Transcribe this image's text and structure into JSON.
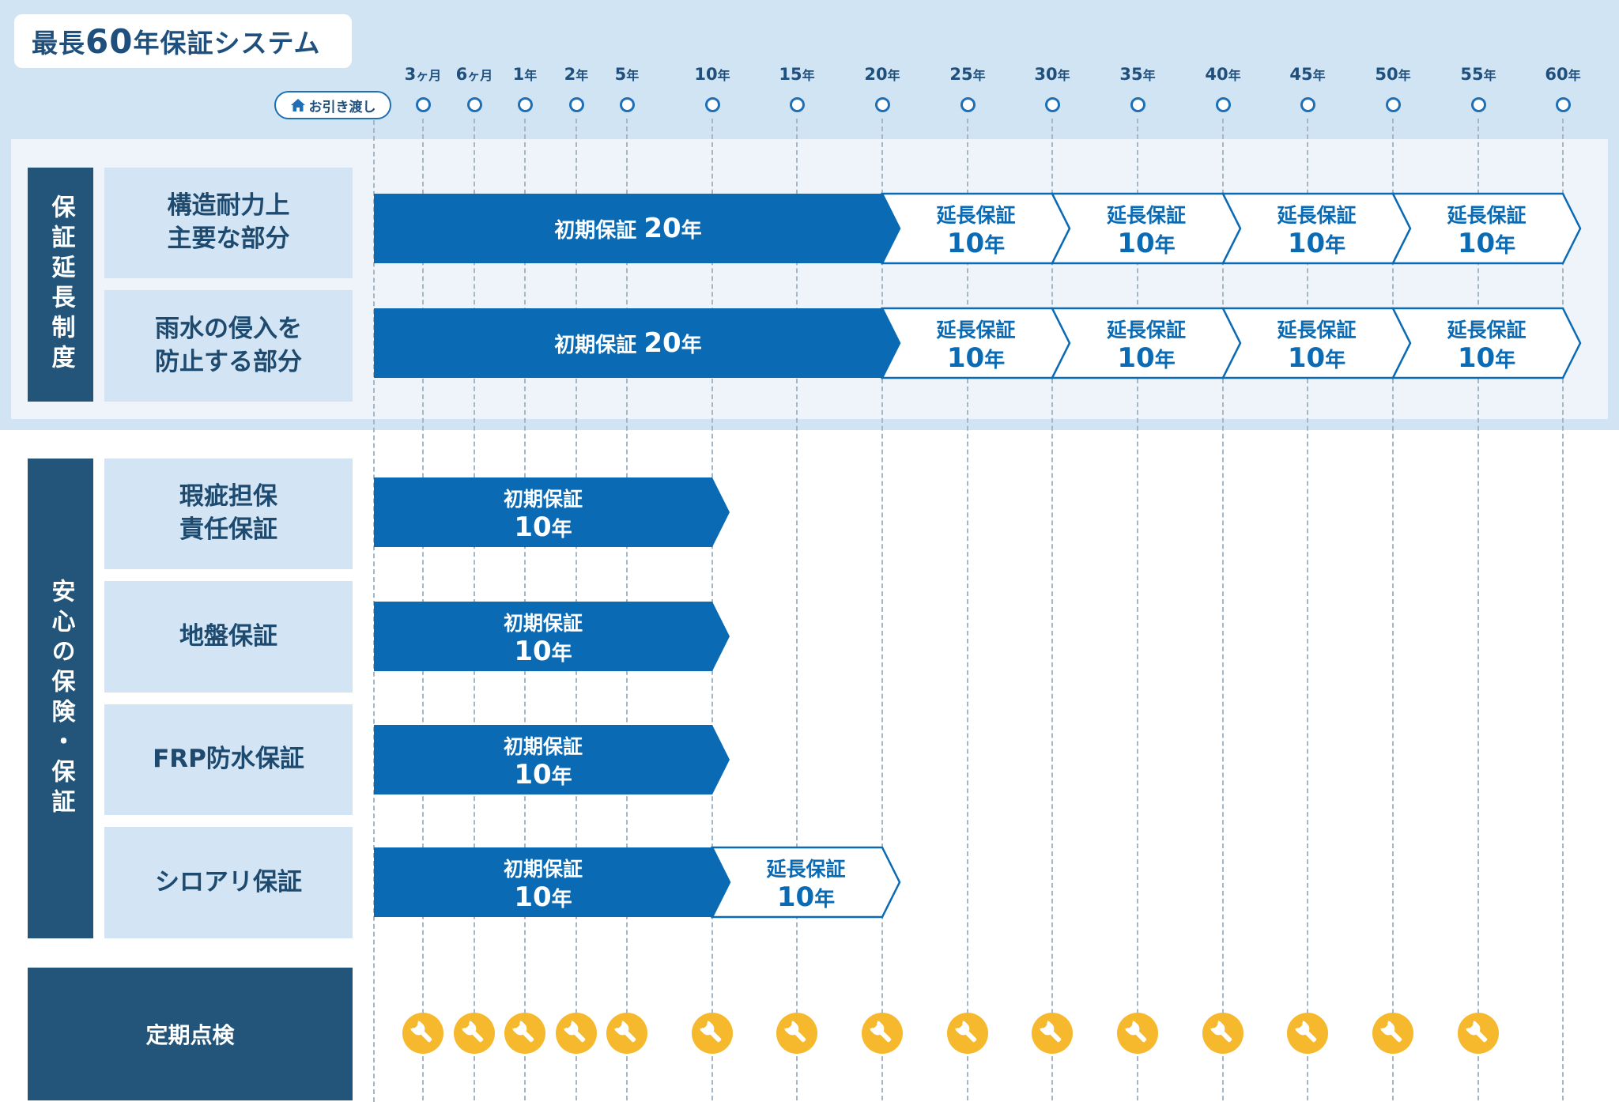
{
  "title": {
    "prefix": "最長",
    "number": "60",
    "suffix": "年保証システム"
  },
  "handover_label": "お引き渡し",
  "colors": {
    "primary": "#0a6ab4",
    "dark": "#23557a",
    "light": "#d3e5f4",
    "wrench": "#f6b82c"
  },
  "timeline": [
    {
      "n": "3",
      "u": "ヶ月"
    },
    {
      "n": "6",
      "u": "ヶ月"
    },
    {
      "n": "1",
      "u": "年"
    },
    {
      "n": "2",
      "u": "年"
    },
    {
      "n": "5",
      "u": "年"
    },
    {
      "n": "10",
      "u": "年"
    },
    {
      "n": "15",
      "u": "年"
    },
    {
      "n": "20",
      "u": "年"
    },
    {
      "n": "25",
      "u": "年"
    },
    {
      "n": "30",
      "u": "年"
    },
    {
      "n": "35",
      "u": "年"
    },
    {
      "n": "40",
      "u": "年"
    },
    {
      "n": "45",
      "u": "年"
    },
    {
      "n": "50",
      "u": "年"
    },
    {
      "n": "55",
      "u": "年"
    },
    {
      "n": "60",
      "u": "年"
    }
  ],
  "groups": {
    "extension": {
      "label": "保証延長制度",
      "rows": [
        {
          "name": "構造耐力上\n主要な部分",
          "initial": {
            "label": "初期保証",
            "years": "20",
            "unit": "年",
            "from": 0,
            "to": 20
          },
          "extensions": [
            {
              "label": "延長保証",
              "years": "10",
              "unit": "年",
              "from": 20,
              "to": 30
            },
            {
              "label": "延長保証",
              "years": "10",
              "unit": "年",
              "from": 30,
              "to": 40
            },
            {
              "label": "延長保証",
              "years": "10",
              "unit": "年",
              "from": 40,
              "to": 50
            },
            {
              "label": "延長保証",
              "years": "10",
              "unit": "年",
              "from": 50,
              "to": 60
            }
          ]
        },
        {
          "name": "雨水の侵入を\n防止する部分",
          "initial": {
            "label": "初期保証",
            "years": "20",
            "unit": "年",
            "from": 0,
            "to": 20
          },
          "extensions": [
            {
              "label": "延長保証",
              "years": "10",
              "unit": "年",
              "from": 20,
              "to": 30
            },
            {
              "label": "延長保証",
              "years": "10",
              "unit": "年",
              "from": 30,
              "to": 40
            },
            {
              "label": "延長保証",
              "years": "10",
              "unit": "年",
              "from": 40,
              "to": 50
            },
            {
              "label": "延長保証",
              "years": "10",
              "unit": "年",
              "from": 50,
              "to": 60
            }
          ]
        }
      ]
    },
    "insurance": {
      "label": "安心の保険・保証",
      "rows": [
        {
          "name": "瑕疵担保\n責任保証",
          "initial": {
            "label": "初期保証",
            "years": "10",
            "unit": "年",
            "from": 0,
            "to": 10
          },
          "extensions": []
        },
        {
          "name": "地盤保証",
          "initial": {
            "label": "初期保証",
            "years": "10",
            "unit": "年",
            "from": 0,
            "to": 10
          },
          "extensions": []
        },
        {
          "name": "FRP防水保証",
          "initial": {
            "label": "初期保証",
            "years": "10",
            "unit": "年",
            "from": 0,
            "to": 10
          },
          "extensions": []
        },
        {
          "name": "シロアリ保証",
          "initial": {
            "label": "初期保証",
            "years": "10",
            "unit": "年",
            "from": 0,
            "to": 10
          },
          "extensions": [
            {
              "label": "延長保証",
              "years": "10",
              "unit": "年",
              "from": 10,
              "to": 20
            }
          ]
        }
      ]
    }
  },
  "inspection": {
    "label": "定期点検",
    "points": [
      "3ヶ月",
      "6ヶ月",
      "1年",
      "2年",
      "5年",
      "10年",
      "15年",
      "20年",
      "25年",
      "30年",
      "35年",
      "40年",
      "45年",
      "50年",
      "55年"
    ]
  }
}
